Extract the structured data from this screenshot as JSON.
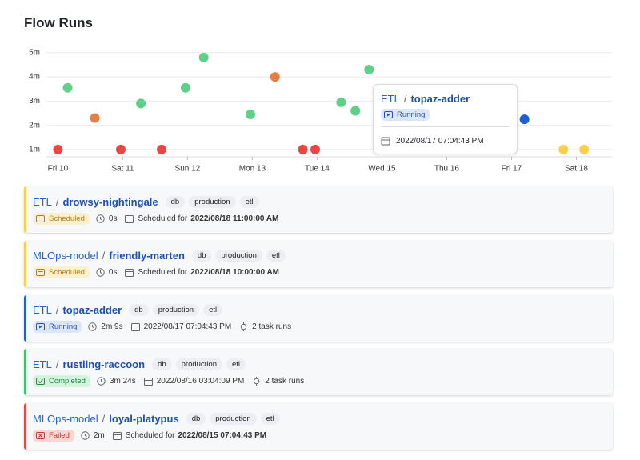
{
  "header": {
    "title": "Flow Runs"
  },
  "chart_data": {
    "type": "scatter",
    "xlim": [
      9.6,
      18.55
    ],
    "xticks": [
      {
        "value": 10,
        "label": "Fri 10"
      },
      {
        "value": 11,
        "label": "Sat 11"
      },
      {
        "value": 12,
        "label": "Sun 12"
      },
      {
        "value": 13,
        "label": "Mon 13"
      },
      {
        "value": 14,
        "label": "Tue 14"
      },
      {
        "value": 15,
        "label": "Wed 15"
      },
      {
        "value": 16,
        "label": "Thu 16"
      },
      {
        "value": 17,
        "label": "Fri 17"
      },
      {
        "value": 18,
        "label": "Sat 18"
      }
    ],
    "ylim": [
      0.7,
      5.4
    ],
    "yticks": [
      {
        "value": 1,
        "label": "1m"
      },
      {
        "value": 2,
        "label": "2m"
      },
      {
        "value": 3,
        "label": "3m"
      },
      {
        "value": 4,
        "label": "4m"
      },
      {
        "value": 5,
        "label": "5m"
      }
    ],
    "grid": true,
    "x": [
      10.0,
      10.15,
      10.57,
      10.97,
      11.28,
      11.6,
      11.97,
      12.25,
      12.97,
      13.35,
      13.78,
      13.97,
      14.37,
      14.59,
      14.8,
      17.2,
      17.8,
      18.12
    ],
    "values": [
      1.0,
      3.55,
      2.3,
      1.0,
      2.9,
      1.0,
      3.55,
      4.8,
      2.45,
      4.0,
      1.0,
      1.0,
      2.95,
      2.6,
      4.3,
      2.25,
      1.0,
      1.0
    ],
    "colors": [
      "#ef4444",
      "#5fd08a",
      "#e57f45",
      "#ef4444",
      "#5fd08a",
      "#ef4444",
      "#5fd08a",
      "#5fd08a",
      "#5fd08a",
      "#e57f45",
      "#ef4444",
      "#ef4444",
      "#5fd08a",
      "#5fd08a",
      "#5fd08a",
      "#1d5fd6",
      "#fbcf4a",
      "#fbcf4a"
    ]
  },
  "tooltip": {
    "flow": "ETL",
    "separator": "/",
    "name": "topaz-adder",
    "state": "Running",
    "date": "2022/08/17 07:04:43 PM"
  },
  "runs": [
    {
      "flow": "ETL",
      "separator": "/",
      "name": "drowsy-nightingale",
      "tags": [
        "db",
        "production",
        "etl"
      ],
      "state": "Scheduled",
      "duration": "0s",
      "date_prefix": "Scheduled for",
      "date": "2022/08/18 11:00:00 AM"
    },
    {
      "flow": "MLOps-model",
      "separator": "/",
      "name": "friendly-marten",
      "tags": [
        "db",
        "production",
        "etl"
      ],
      "state": "Scheduled",
      "duration": "0s",
      "date_prefix": "Scheduled for",
      "date": "2022/08/18 10:00:00 AM"
    },
    {
      "flow": "ETL",
      "separator": "/",
      "name": "topaz-adder",
      "tags": [
        "db",
        "production",
        "etl"
      ],
      "state": "Running",
      "duration": "2m 9s",
      "date": "2022/08/17 07:04:43 PM",
      "task_runs": "2 task runs"
    },
    {
      "flow": "ETL",
      "separator": "/",
      "name": "rustling-raccoon",
      "tags": [
        "db",
        "production",
        "etl"
      ],
      "state": "Completed",
      "duration": "3m 24s",
      "date": "2022/08/16 03:04:09 PM",
      "task_runs": "2 task runs"
    },
    {
      "flow": "MLOps-model",
      "separator": "/",
      "name": "loyal-platypus",
      "tags": [
        "db",
        "production",
        "etl"
      ],
      "state": "Failed",
      "duration": "2m",
      "date_prefix": "Scheduled for",
      "date": "2022/08/15 07:04:43 PM"
    }
  ]
}
